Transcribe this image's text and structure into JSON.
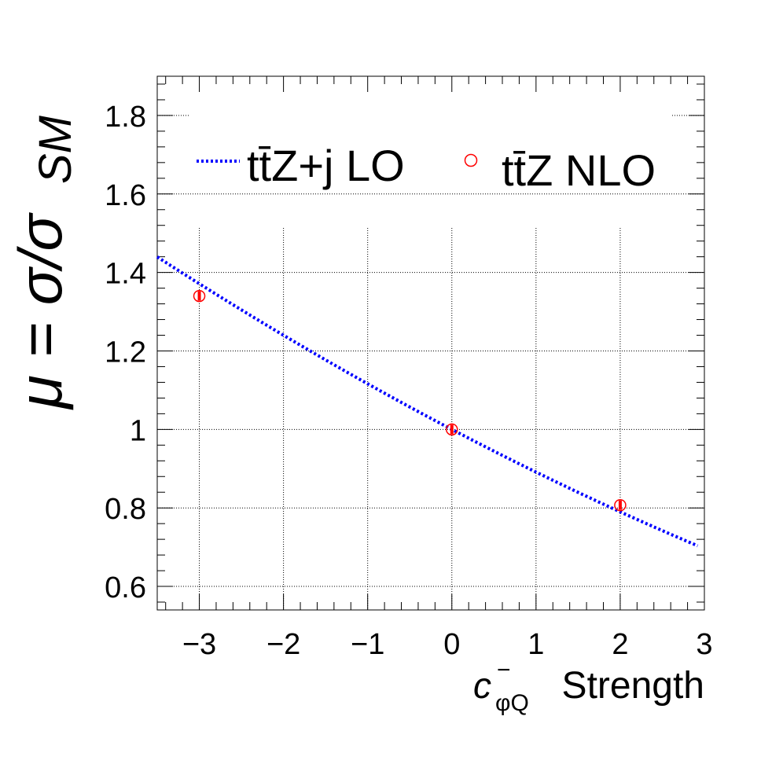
{
  "chart_data": {
    "type": "scatter",
    "xlabel": "Strength",
    "xlabel_symbol": "c",
    "xlabel_sub": "φQ",
    "xlabel_sup": "−",
    "ylabel": "μ = σ/σ",
    "ylabel_sub": "SM",
    "xlim": [
      -3.5,
      3.0
    ],
    "ylim": [
      0.54,
      1.9
    ],
    "x_ticks": [
      -3,
      -2,
      -1,
      0,
      1,
      2,
      3
    ],
    "x_tick_labels": [
      "−3",
      "−2",
      "−1",
      "0",
      "1",
      "2",
      "3"
    ],
    "y_ticks": [
      0.6,
      0.8,
      1.0,
      1.2,
      1.4,
      1.6,
      1.8
    ],
    "y_tick_labels": [
      "0.6",
      "0.8",
      "1",
      "1.2",
      "1.4",
      "1.6",
      "1.8"
    ],
    "grid": true,
    "legend_position": "top",
    "series": [
      {
        "name": "tt̄Z+j LO",
        "style": "dotted-line",
        "color": "#0000ff",
        "curve": {
          "a": 1.0,
          "b": -0.1125,
          "c": 0.00375
        },
        "x_range": [
          -3.5,
          2.92
        ]
      },
      {
        "name": "tt̄Z NLO",
        "style": "open-circle-errorbar",
        "color": "#ff0000",
        "points": [
          {
            "x": -3,
            "y": 1.34,
            "err": 0.012
          },
          {
            "x": 0,
            "y": 1.0,
            "err": 0.012
          },
          {
            "x": 2,
            "y": 0.807,
            "err": 0.012
          }
        ]
      }
    ]
  }
}
